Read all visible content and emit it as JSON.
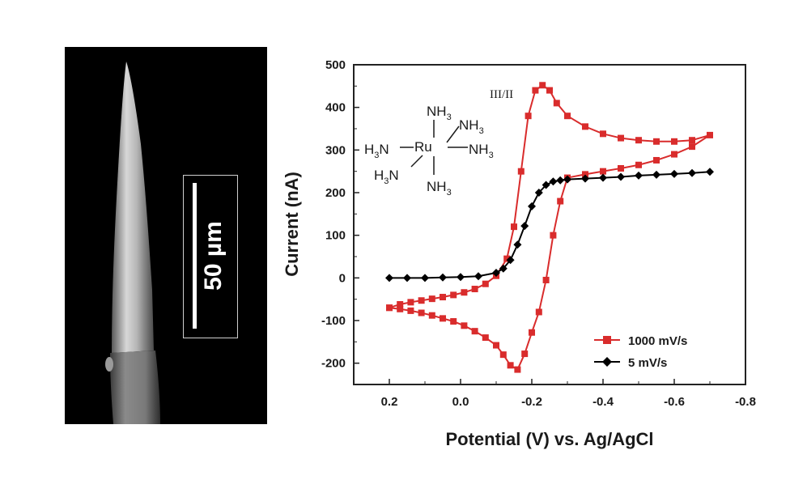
{
  "sem": {
    "scale_label": "50 µm"
  },
  "structure": {
    "metal": "Ru",
    "subscript": "3"
  },
  "chart_data": {
    "type": "line",
    "xlabel": "Potential (V) vs. Ag/AgCl",
    "ylabel": "Current (nA)",
    "xlim": [
      0.3,
      -0.8
    ],
    "ylim": [
      -250,
      500
    ],
    "xticks": [
      0.2,
      0.0,
      -0.2,
      -0.4,
      -0.6,
      -0.8
    ],
    "xtick_labels": [
      "0.2",
      "0.0",
      "-0.2",
      "-0.4",
      "-0.6",
      "-0.8"
    ],
    "yticks": [
      -200,
      -100,
      0,
      100,
      200,
      300,
      400,
      500
    ],
    "ytick_labels": [
      "-200",
      "-100",
      "0",
      "100",
      "200",
      "300",
      "400",
      "500"
    ],
    "annotations": {
      "couple": "III/II"
    },
    "series": [
      {
        "name": "1000 mV/s",
        "color": "#d92c2c",
        "marker": "square",
        "x": [
          0.2,
          0.17,
          0.14,
          0.11,
          0.08,
          0.05,
          0.02,
          -0.01,
          -0.04,
          -0.07,
          -0.1,
          -0.13,
          -0.15,
          -0.17,
          -0.19,
          -0.21,
          -0.23,
          -0.25,
          -0.27,
          -0.3,
          -0.35,
          -0.4,
          -0.45,
          -0.5,
          -0.55,
          -0.6,
          -0.65,
          -0.7,
          -0.65,
          -0.6,
          -0.55,
          -0.5,
          -0.45,
          -0.4,
          -0.35,
          -0.3,
          -0.28,
          -0.26,
          -0.24,
          -0.22,
          -0.2,
          -0.18,
          -0.16,
          -0.14,
          -0.12,
          -0.1,
          -0.07,
          -0.04,
          -0.01,
          0.02,
          0.05,
          0.08,
          0.11,
          0.14,
          0.17,
          0.2
        ],
        "y": [
          -70,
          -62,
          -57,
          -53,
          -49,
          -45,
          -40,
          -34,
          -26,
          -14,
          5,
          45,
          120,
          250,
          380,
          440,
          452,
          440,
          410,
          380,
          355,
          338,
          328,
          323,
          320,
          320,
          323,
          335,
          308,
          290,
          276,
          265,
          257,
          250,
          243,
          235,
          180,
          100,
          -5,
          -80,
          -128,
          -178,
          -215,
          -205,
          -180,
          -158,
          -140,
          -125,
          -112,
          -102,
          -95,
          -88,
          -82,
          -77,
          -73,
          -70
        ]
      },
      {
        "name": "5 mV/s",
        "color": "#000000",
        "marker": "diamond",
        "x": [
          0.2,
          0.15,
          0.1,
          0.05,
          0.0,
          -0.05,
          -0.1,
          -0.12,
          -0.14,
          -0.16,
          -0.18,
          -0.2,
          -0.22,
          -0.24,
          -0.26,
          -0.28,
          -0.3,
          -0.35,
          -0.4,
          -0.45,
          -0.5,
          -0.55,
          -0.6,
          -0.65,
          -0.7
        ],
        "y": [
          0,
          0,
          0,
          1,
          2,
          4,
          12,
          22,
          42,
          78,
          122,
          168,
          200,
          218,
          226,
          229,
          231,
          233,
          235,
          237,
          240,
          242,
          244,
          246,
          249
        ]
      }
    ]
  }
}
